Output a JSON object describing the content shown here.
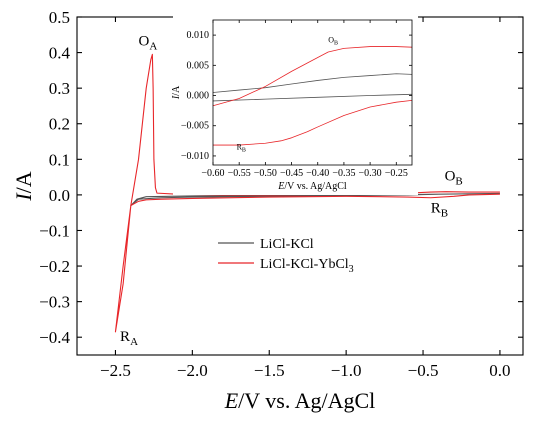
{
  "chart_data": [
    {
      "type": "line",
      "xlabel": {
        "italic": "E",
        "rest": "/V vs. Ag/AgCl"
      },
      "ylabel": {
        "italic": "I",
        "rest": "/A"
      },
      "xlim": [
        -2.75,
        0.15
      ],
      "ylim": [
        -0.45,
        0.5
      ],
      "xticks": [
        -2.5,
        -2.0,
        -1.5,
        -1.0,
        -0.5,
        0.0
      ],
      "xtick_labels": [
        "−2.5",
        "−2.0",
        "−1.5",
        "−1.0",
        "−0.5",
        "0.0"
      ],
      "yticks": [
        -0.4,
        -0.3,
        -0.2,
        -0.1,
        0.0,
        0.1,
        0.2,
        0.3,
        0.4,
        0.5
      ],
      "ytick_labels": [
        "−0.4",
        "−0.3",
        "−0.2",
        "−0.1",
        "0.0",
        "0.1",
        "0.2",
        "0.3",
        "0.4",
        "0.5"
      ],
      "legend": {
        "position": "lower-center"
      },
      "annotations": [
        {
          "main": "O",
          "sub": "A",
          "x": -2.35,
          "y": 0.42
        },
        {
          "main": "R",
          "sub": "A",
          "x": -2.47,
          "y": -0.41
        },
        {
          "main": "O",
          "sub": "B",
          "x": -0.36,
          "y": 0.04
        },
        {
          "main": "R",
          "sub": "B",
          "x": -0.45,
          "y": -0.05
        }
      ],
      "series": [
        {
          "name": "LiCl-KCl",
          "legend_parts": [
            {
              "t": "LiCl-KCl"
            }
          ],
          "color": "#555555",
          "x": [
            0.0,
            -0.2,
            -0.4,
            -0.6,
            -1.0,
            -1.5,
            -2.0,
            -2.2,
            -2.35,
            -2.4,
            -2.36,
            -2.3,
            -2.0,
            -1.5,
            -1.0,
            -0.6,
            -0.4,
            -0.2,
            0.0
          ],
          "y": [
            0.004,
            0.003,
            0.002,
            0.0,
            -0.002,
            -0.004,
            -0.006,
            -0.008,
            -0.012,
            -0.03,
            -0.012,
            -0.005,
            -0.003,
            -0.002,
            0.0,
            0.001,
            0.002,
            0.003,
            0.004
          ]
        },
        {
          "name": "LiCl-KCl-YbCl3",
          "legend_parts": [
            {
              "t": "LiCl-KCl-YbCl"
            },
            {
              "t": "3",
              "sub": true
            }
          ],
          "color": "#e8262a",
          "x": [
            0.0,
            -0.2,
            -0.3,
            -0.45,
            -0.6,
            -1.0,
            -1.5,
            -2.0,
            -2.2,
            -2.3,
            -2.35,
            -2.4,
            -2.45,
            -2.5,
            -2.45,
            -2.4,
            -2.35,
            -2.3,
            -2.27,
            -2.26,
            -2.255,
            -2.25,
            -2.24,
            -2.23,
            -2.1,
            -1.8,
            -1.5,
            -1.0,
            -0.6,
            -0.45,
            -0.35,
            -0.2,
            0.0
          ],
          "y": [
            0.002,
            0.0,
            -0.004,
            -0.008,
            -0.006,
            -0.004,
            -0.006,
            -0.01,
            -0.012,
            -0.014,
            -0.018,
            -0.03,
            -0.2,
            -0.385,
            -0.25,
            -0.03,
            0.1,
            0.3,
            0.38,
            0.395,
            0.3,
            0.1,
            0.02,
            0.005,
            0.002,
            0.0,
            0.0,
            0.002,
            0.005,
            0.008,
            0.009,
            0.008,
            0.008
          ]
        }
      ]
    },
    {
      "type": "line",
      "xlabel": {
        "italic": "E",
        "rest": "/V vs. Ag/AgCl"
      },
      "ylabel": {
        "italic": "I",
        "rest": "/A"
      },
      "xlim": [
        -0.6,
        -0.22
      ],
      "ylim": [
        -0.0115,
        0.0125
      ],
      "xticks": [
        -0.6,
        -0.55,
        -0.5,
        -0.45,
        -0.4,
        -0.35,
        -0.3,
        -0.25
      ],
      "xtick_labels": [
        "−0.60",
        "−0.55",
        "−0.50",
        "−0.45",
        "−0.40",
        "−0.35",
        "−0.30",
        "−0.25"
      ],
      "yticks": [
        -0.01,
        -0.005,
        0.0,
        0.005,
        0.01
      ],
      "ytick_labels": [
        "−0.010",
        "−0.005",
        "0.000",
        "0.005",
        "0.010"
      ],
      "annotations": [
        {
          "main": "O",
          "sub": "B",
          "x": -0.38,
          "y": 0.0088
        },
        {
          "main": "R",
          "sub": "B",
          "x": -0.555,
          "y": -0.0089
        }
      ],
      "series": [
        {
          "name": "LiCl-KCl",
          "color": "#555555",
          "x": [
            -0.6,
            -0.55,
            -0.5,
            -0.45,
            -0.4,
            -0.35,
            -0.3,
            -0.25,
            -0.22
          ],
          "y": [
            0.0005,
            0.0009,
            0.0013,
            0.0019,
            0.0025,
            0.003,
            0.0033,
            0.0036,
            0.0035
          ]
        },
        {
          "name": "LiCl-KCl",
          "color": "#555555",
          "x": [
            -0.6,
            -0.5,
            -0.4,
            -0.3,
            -0.22
          ],
          "y": [
            -0.0009,
            -0.0006,
            -0.0003,
            0.0,
            0.0002
          ]
        },
        {
          "name": "LiCl-KCl-YbCl3",
          "color": "#e8262a",
          "x": [
            -0.6,
            -0.55,
            -0.5,
            -0.45,
            -0.4,
            -0.38,
            -0.35,
            -0.3,
            -0.25,
            -0.22
          ],
          "y": [
            -0.0017,
            -0.0005,
            0.0015,
            0.004,
            0.0063,
            0.0072,
            0.0078,
            0.0081,
            0.0081,
            0.008
          ]
        },
        {
          "name": "LiCl-KCl-YbCl3",
          "color": "#e8262a",
          "x": [
            -0.6,
            -0.55,
            -0.5,
            -0.47,
            -0.45,
            -0.42,
            -0.4,
            -0.35,
            -0.3,
            -0.25,
            -0.22
          ],
          "y": [
            -0.0082,
            -0.0082,
            -0.0079,
            -0.0075,
            -0.007,
            -0.006,
            -0.0052,
            -0.0033,
            -0.0019,
            -0.0011,
            -0.0008
          ]
        }
      ]
    }
  ]
}
